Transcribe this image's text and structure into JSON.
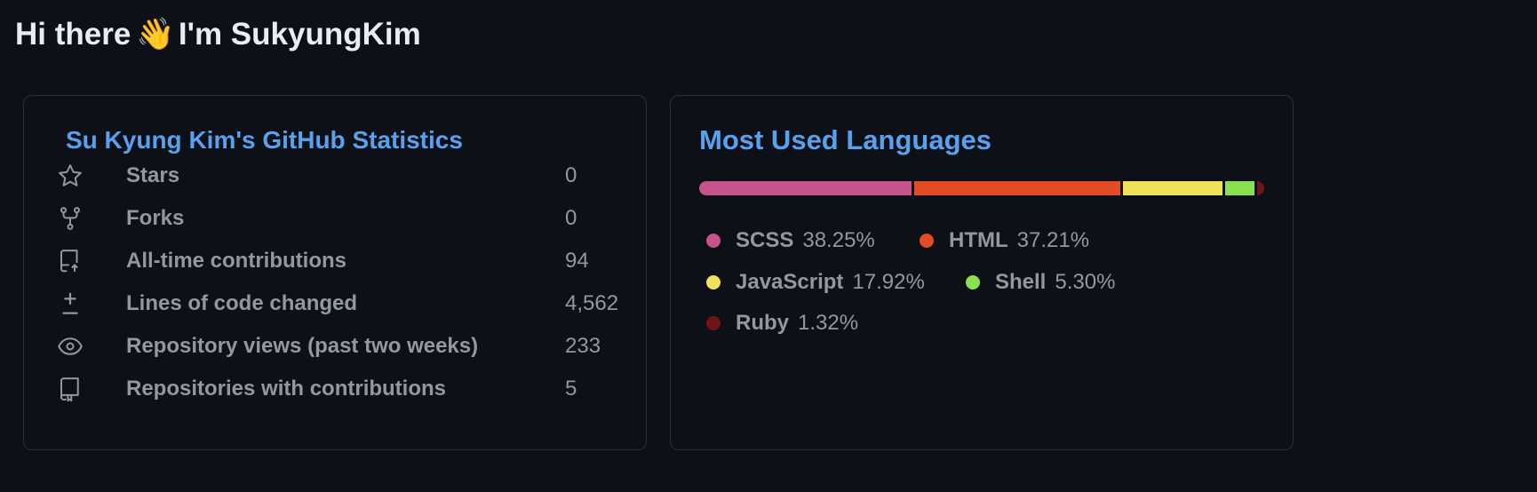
{
  "heading": {
    "before": "Hi there",
    "emoji": "👋",
    "after": "I'm SukyungKim"
  },
  "stats_card": {
    "title": "Su Kyung Kim's GitHub Statistics",
    "rows": [
      {
        "icon": "star-icon",
        "label": "Stars",
        "value": "0"
      },
      {
        "icon": "fork-icon",
        "label": "Forks",
        "value": "0"
      },
      {
        "icon": "contribution-icon",
        "label": "All-time contributions",
        "value": "94"
      },
      {
        "icon": "diff-icon",
        "label": "Lines of code changed",
        "value": "4,562"
      },
      {
        "icon": "eye-icon",
        "label": "Repository views (past two weeks)",
        "value": "233"
      },
      {
        "icon": "repo-icon",
        "label": "Repositories with contributions",
        "value": "5"
      }
    ]
  },
  "languages_card": {
    "title": "Most Used Languages",
    "languages": [
      {
        "name": "SCSS",
        "percent": "38.25%",
        "value": 38.25,
        "color": "#c6538c"
      },
      {
        "name": "HTML",
        "percent": "37.21%",
        "value": 37.21,
        "color": "#e34c26"
      },
      {
        "name": "JavaScript",
        "percent": "17.92%",
        "value": 17.92,
        "color": "#f1e05a"
      },
      {
        "name": "Shell",
        "percent": "5.30%",
        "value": 5.3,
        "color": "#89e051"
      },
      {
        "name": "Ruby",
        "percent": "1.32%",
        "value": 1.32,
        "color": "#701516"
      }
    ]
  },
  "colors": {
    "background": "#0d1117",
    "title": "#58a1ef",
    "text": "#9198a1",
    "border": "#2a2f36"
  }
}
